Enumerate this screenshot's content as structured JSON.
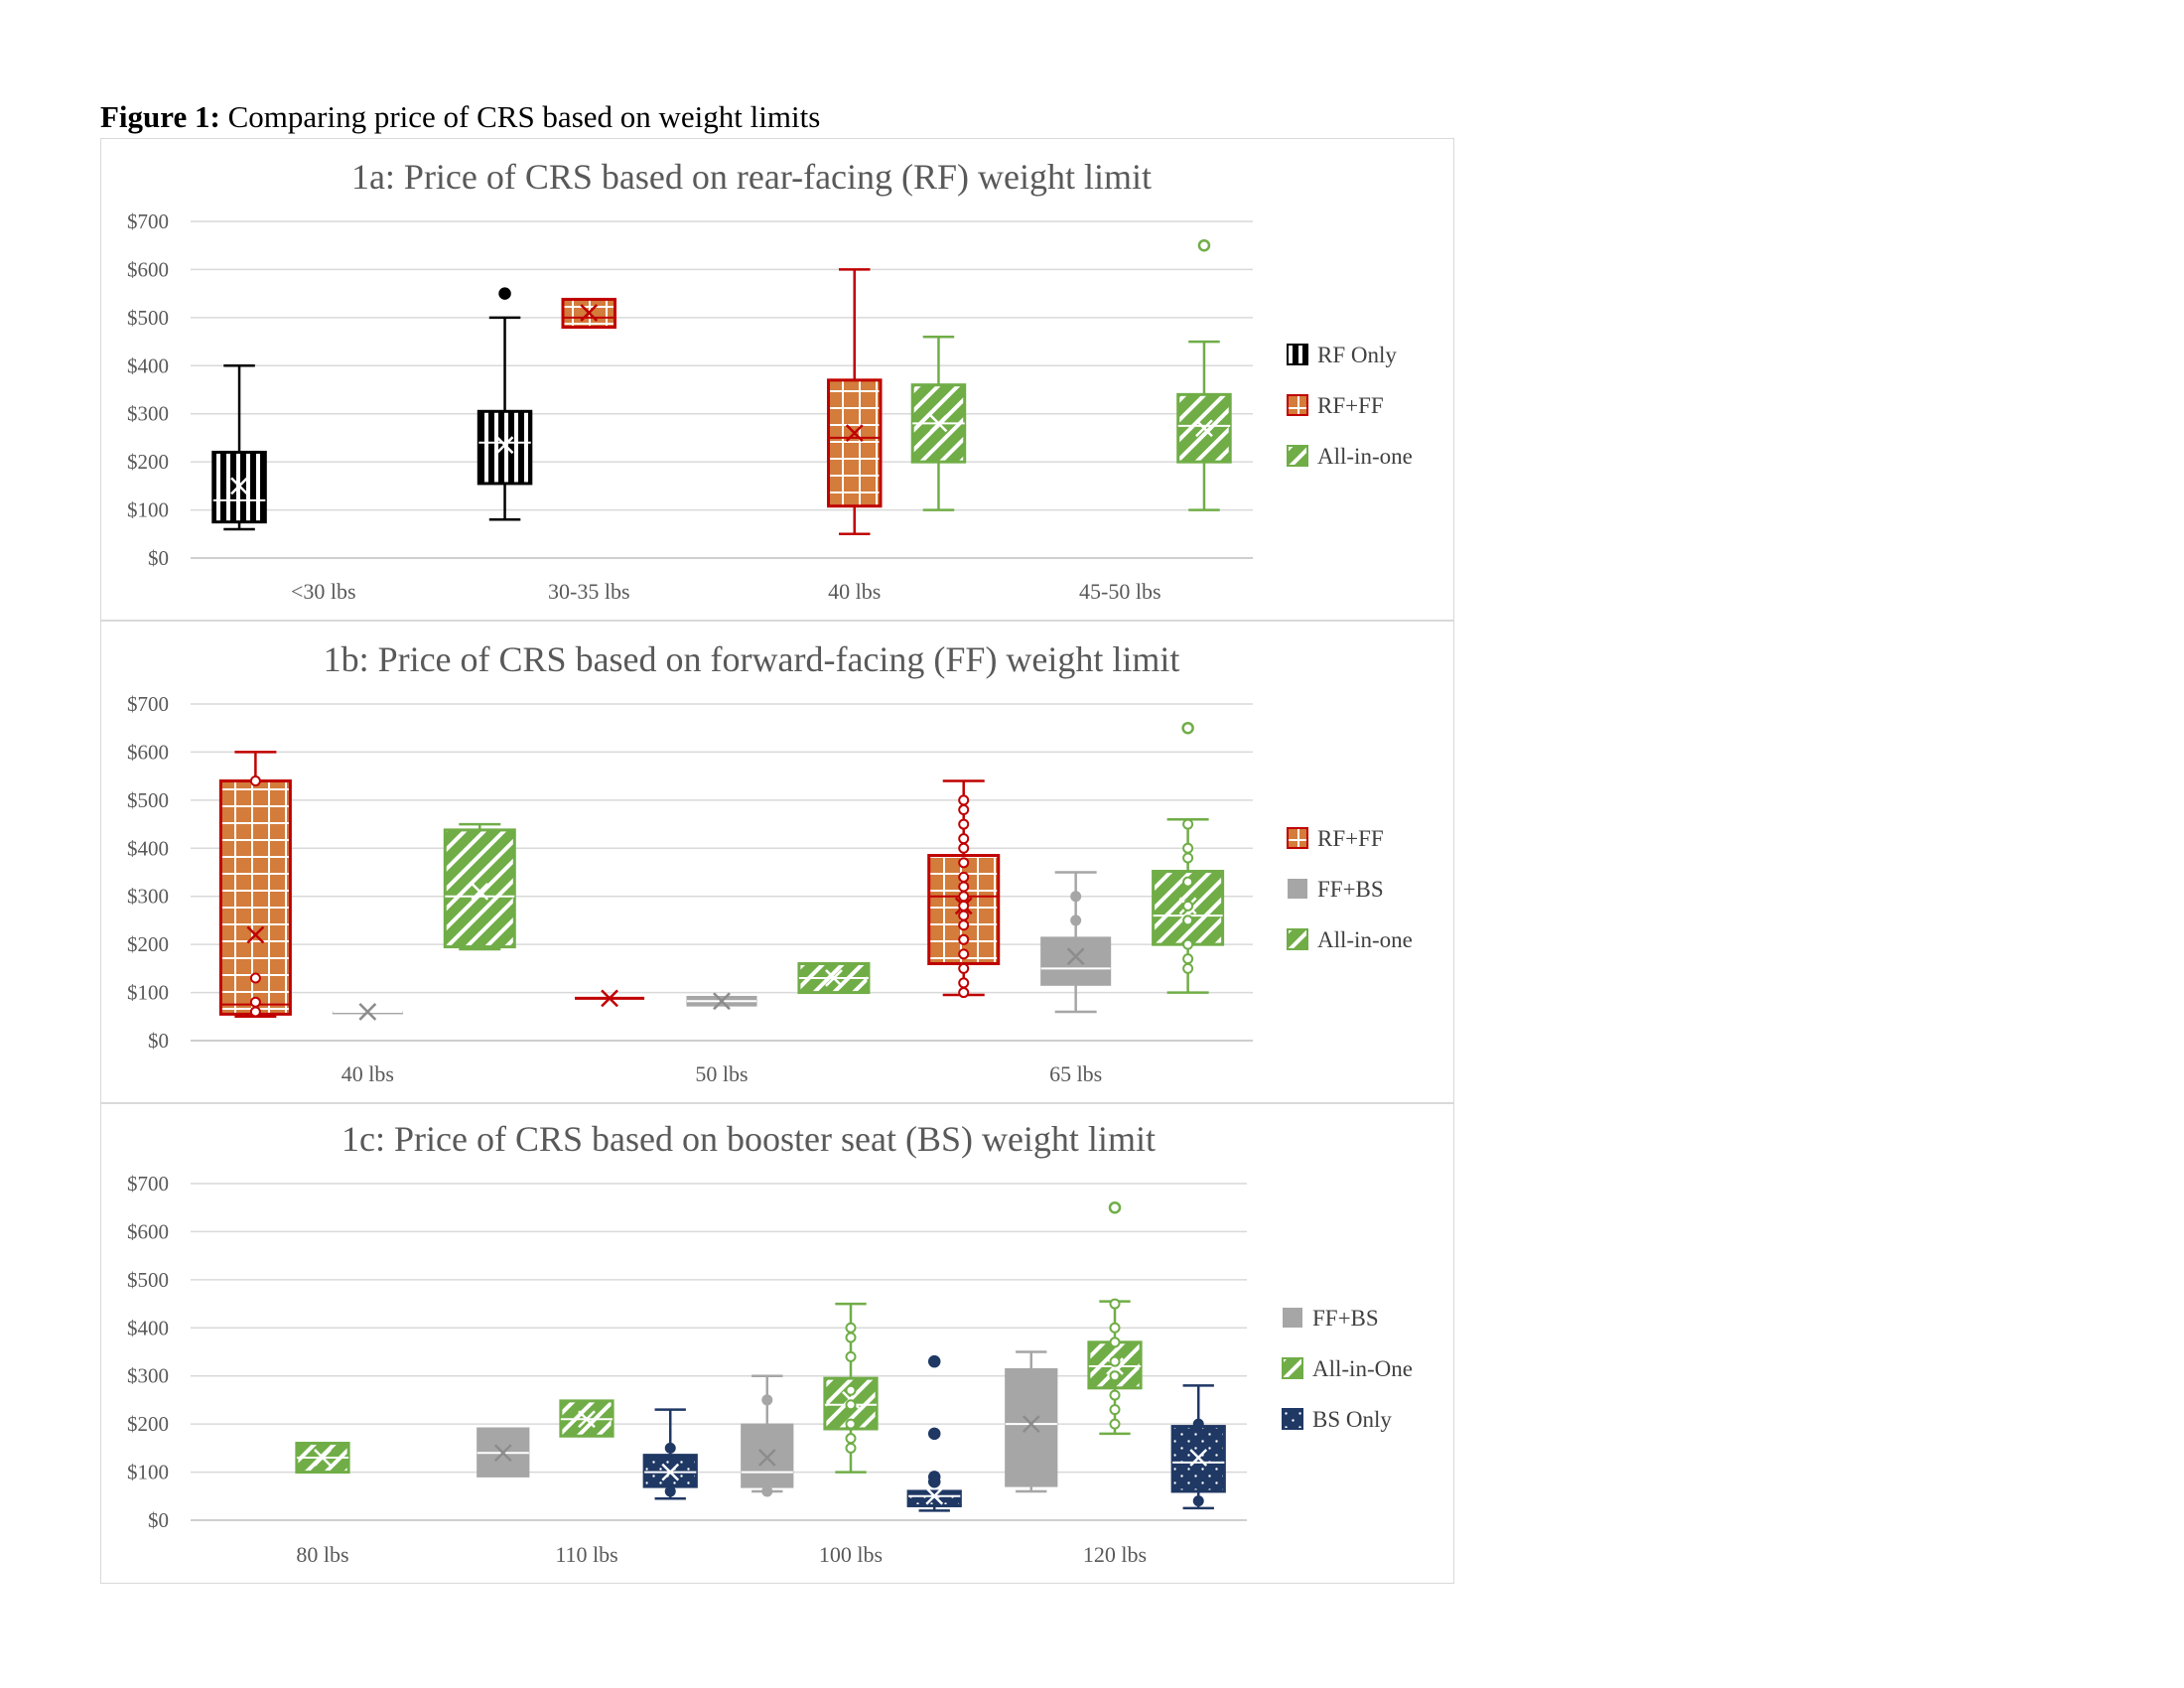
{
  "figure_caption": {
    "label": "Figure 1:",
    "text": "Comparing price of CRS based on weight limits"
  },
  "chart_data": [
    {
      "id": "1a",
      "type": "box",
      "title": "1a: Price of CRS based on rear-facing (RF) weight limit",
      "xlabel": "",
      "ylabel": "",
      "ylim": [
        0,
        700
      ],
      "yticks": [
        "$0",
        "$100",
        "$200",
        "$300",
        "$400",
        "$500",
        "$600",
        "$700"
      ],
      "grid": true,
      "legend_position": "right",
      "categories": [
        "<30 lbs",
        "30-35 lbs",
        "40 lbs",
        "45-50 lbs"
      ],
      "series": [
        {
          "name": "RF Only",
          "pattern": "vlines",
          "stroke": "#000000",
          "fill": "#000000",
          "boxes": [
            {
              "category": "<30 lbs",
              "min": 60,
              "q1": 75,
              "median": 120,
              "q3": 220,
              "max": 400,
              "mean": 150,
              "outliers": []
            },
            {
              "category": "30-35 lbs",
              "min": 80,
              "q1": 155,
              "median": 240,
              "q3": 305,
              "max": 500,
              "mean": 235,
              "outliers": [
                550
              ]
            }
          ]
        },
        {
          "name": "RF+FF",
          "pattern": "grid",
          "stroke": "#c00000",
          "fill": "#d37c3b",
          "boxes": [
            {
              "category": "30-35 lbs",
              "min": 480,
              "q1": 480,
              "median": 500,
              "q3": 538,
              "max": 538,
              "mean": 510,
              "outliers": []
            },
            {
              "category": "40 lbs",
              "min": 50,
              "q1": 108,
              "median": 250,
              "q3": 370,
              "max": 600,
              "mean": 260,
              "outliers": []
            }
          ]
        },
        {
          "name": "All-in-one",
          "pattern": "diag",
          "stroke": "#70ad47",
          "fill": "#70ad47",
          "boxes": [
            {
              "category": "40 lbs",
              "min": 100,
              "q1": 200,
              "median": 280,
              "q3": 360,
              "max": 460,
              "mean": 280,
              "outliers": []
            },
            {
              "category": "45-50 lbs",
              "min": 100,
              "q1": 200,
              "median": 275,
              "q3": 340,
              "max": 450,
              "mean": 270,
              "outliers": [
                650
              ]
            }
          ]
        }
      ]
    },
    {
      "id": "1b",
      "type": "box",
      "title": "1b: Price of CRS based on forward-facing (FF) weight limit",
      "xlabel": "",
      "ylabel": "",
      "ylim": [
        0,
        700
      ],
      "yticks": [
        "$0",
        "$100",
        "$200",
        "$300",
        "$400",
        "$500",
        "$600",
        "$700"
      ],
      "grid": true,
      "legend_position": "right",
      "categories": [
        "40 lbs",
        "50 lbs",
        "65 lbs"
      ],
      "series": [
        {
          "name": "RF+FF",
          "pattern": "grid",
          "stroke": "#c00000",
          "fill": "#d37c3b",
          "boxes": [
            {
              "category": "40 lbs",
              "min": 50,
              "q1": 55,
              "median": 75,
              "q3": 540,
              "max": 600,
              "mean": 220,
              "outliers": [],
              "points": [
                540,
                130,
                80,
                60
              ]
            },
            {
              "category": "50 lbs",
              "min": 88,
              "q1": 88,
              "median": 88,
              "q3": 88,
              "max": 88,
              "mean": 88,
              "outliers": []
            },
            {
              "category": "65 lbs",
              "min": 95,
              "q1": 160,
              "median": 300,
              "q3": 385,
              "max": 540,
              "mean": 280,
              "outliers": [],
              "points": [
                500,
                480,
                450,
                420,
                400,
                370,
                340,
                320,
                300,
                280,
                260,
                240,
                210,
                180,
                150,
                120,
                100
              ]
            }
          ]
        },
        {
          "name": "FF+BS",
          "pattern": "solid",
          "stroke": "#a6a6a6",
          "fill": "#a6a6a6",
          "boxes": [
            {
              "category": "40 lbs",
              "min": 60,
              "q1": 60,
              "median": 60,
              "q3": 60,
              "max": 60,
              "mean": 60,
              "outliers": []
            },
            {
              "category": "50 lbs",
              "min": 72,
              "q1": 72,
              "median": 82,
              "q3": 92,
              "max": 92,
              "mean": 82,
              "outliers": []
            },
            {
              "category": "65 lbs",
              "min": 60,
              "q1": 115,
              "median": 150,
              "q3": 215,
              "max": 350,
              "mean": 175,
              "outliers": [],
              "points": [
                300,
                250
              ]
            }
          ]
        },
        {
          "name": "All-in-one",
          "pattern": "diag",
          "stroke": "#70ad47",
          "fill": "#70ad47",
          "boxes": [
            {
              "category": "40 lbs",
              "min": 190,
              "q1": 195,
              "median": 300,
              "q3": 438,
              "max": 450,
              "mean": 310,
              "outliers": []
            },
            {
              "category": "50 lbs",
              "min": 100,
              "q1": 100,
              "median": 130,
              "q3": 160,
              "max": 160,
              "mean": 130,
              "outliers": []
            },
            {
              "category": "65 lbs",
              "min": 100,
              "q1": 200,
              "median": 260,
              "q3": 352,
              "max": 460,
              "mean": 280,
              "outliers": [
                650
              ],
              "points": [
                450,
                400,
                380,
                330,
                280,
                250,
                200,
                170,
                150
              ]
            }
          ]
        }
      ]
    },
    {
      "id": "1c",
      "type": "box",
      "title": "1c: Price of CRS based on booster seat (BS) weight limit",
      "xlabel": "",
      "ylabel": "",
      "ylim": [
        0,
        700
      ],
      "yticks": [
        "$0",
        "$100",
        "$200",
        "$300",
        "$400",
        "$500",
        "$600",
        "$700"
      ],
      "grid": true,
      "legend_position": "right",
      "categories": [
        "80 lbs",
        "110 lbs",
        "100 lbs",
        "120 lbs"
      ],
      "series": [
        {
          "name": "FF+BS",
          "pattern": "solid",
          "stroke": "#a6a6a6",
          "fill": "#a6a6a6",
          "boxes": [
            {
              "category": "110 lbs",
              "min": 90,
              "q1": 90,
              "median": 140,
              "q3": 192,
              "max": 192,
              "mean": 140,
              "outliers": []
            },
            {
              "category": "100 lbs",
              "min": 60,
              "q1": 68,
              "median": 100,
              "q3": 200,
              "max": 300,
              "mean": 130,
              "outliers": [],
              "points": [
                250,
                60
              ]
            },
            {
              "category": "120 lbs",
              "min": 60,
              "q1": 70,
              "median": 200,
              "q3": 315,
              "max": 350,
              "mean": 200,
              "outliers": []
            }
          ]
        },
        {
          "name": "All-in-One",
          "pattern": "diag",
          "stroke": "#70ad47",
          "fill": "#70ad47",
          "boxes": [
            {
              "category": "80 lbs",
              "min": 100,
              "q1": 100,
              "median": 130,
              "q3": 160,
              "max": 160,
              "mean": 130,
              "outliers": []
            },
            {
              "category": "110 lbs",
              "min": 175,
              "q1": 175,
              "median": 210,
              "q3": 248,
              "max": 248,
              "mean": 210,
              "outliers": []
            },
            {
              "category": "100 lbs",
              "min": 100,
              "q1": 190,
              "median": 240,
              "q3": 295,
              "max": 450,
              "mean": 250,
              "outliers": [],
              "points": [
                400,
                380,
                340,
                270,
                240,
                200,
                170,
                150
              ]
            },
            {
              "category": "120 lbs",
              "min": 180,
              "q1": 275,
              "median": 320,
              "q3": 370,
              "max": 455,
              "mean": 320,
              "outliers": [
                650
              ],
              "points": [
                450,
                400,
                370,
                330,
                300,
                260,
                230,
                200
              ]
            }
          ]
        },
        {
          "name": "BS Only",
          "pattern": "dots",
          "stroke": "#1f3864",
          "fill": "#1f3864",
          "boxes": [
            {
              "category": "110 lbs",
              "min": 45,
              "q1": 70,
              "median": 100,
              "q3": 135,
              "max": 230,
              "mean": 100,
              "outliers": [],
              "points": [
                150,
                60
              ]
            },
            {
              "category": "100 lbs",
              "min": 20,
              "q1": 30,
              "median": 50,
              "q3": 60,
              "max": 60,
              "mean": 50,
              "outliers": [
                330,
                180,
                90,
                80
              ],
              "points": []
            },
            {
              "category": "120 lbs",
              "min": 25,
              "q1": 60,
              "median": 120,
              "q3": 195,
              "max": 280,
              "mean": 130,
              "outliers": [],
              "points": [
                200,
                40
              ]
            }
          ]
        }
      ]
    }
  ]
}
